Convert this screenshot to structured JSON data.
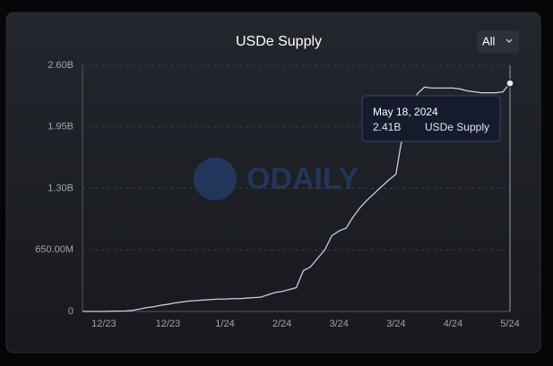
{
  "chart_data": {
    "type": "line",
    "title": "USDe Supply",
    "button": "All",
    "watermark": "ODAILY",
    "categories": [
      null,
      null,
      null,
      "12/23",
      null,
      null,
      null,
      null,
      null,
      null,
      null,
      null,
      "12/23",
      null,
      null,
      null,
      null,
      null,
      null,
      null,
      "1/24",
      null,
      null,
      null,
      null,
      null,
      null,
      null,
      "2/24",
      null,
      null,
      null,
      null,
      null,
      null,
      null,
      "3/24",
      null,
      null,
      null,
      null,
      null,
      null,
      null,
      "3/24",
      null,
      null,
      null,
      null,
      null,
      null,
      null,
      "4/24",
      null,
      null,
      null,
      null,
      null,
      null,
      null,
      "5/24"
    ],
    "series": [
      {
        "name": "USDe Supply",
        "color": "#c9cce8",
        "values": [
          0,
          0,
          0,
          0,
          2000000,
          3000000,
          5000000,
          10000000,
          25000000,
          40000000,
          50000000,
          65000000,
          75000000,
          90000000,
          100000000,
          110000000,
          115000000,
          120000000,
          125000000,
          130000000,
          130000000,
          135000000,
          135000000,
          140000000,
          145000000,
          150000000,
          175000000,
          200000000,
          210000000,
          230000000,
          250000000,
          430000000,
          470000000,
          560000000,
          650000000,
          800000000,
          850000000,
          880000000,
          1000000000,
          1100000000,
          1180000000,
          1250000000,
          1320000000,
          1390000000,
          1450000000,
          1900000000,
          2100000000,
          2300000000,
          2370000000,
          2360000000,
          2360000000,
          2360000000,
          2360000000,
          2350000000,
          2330000000,
          2320000000,
          2310000000,
          2310000000,
          2310000000,
          2320000000,
          2410000000
        ]
      }
    ],
    "ylim": [
      0,
      2600000000
    ],
    "yticks": [
      0,
      {
        "value": 650000000,
        "label": "650.00M"
      },
      {
        "value": 1300000000,
        "label": "1.30B"
      },
      {
        "value": 1950000000,
        "label": "1.95B"
      },
      {
        "value": 2600000000,
        "label": "2.60B"
      }
    ],
    "grid": true,
    "tooltip": {
      "date": "May 18, 2024",
      "value": 2410000000,
      "value_label": "2.41B",
      "series": "USDe Supply"
    }
  }
}
